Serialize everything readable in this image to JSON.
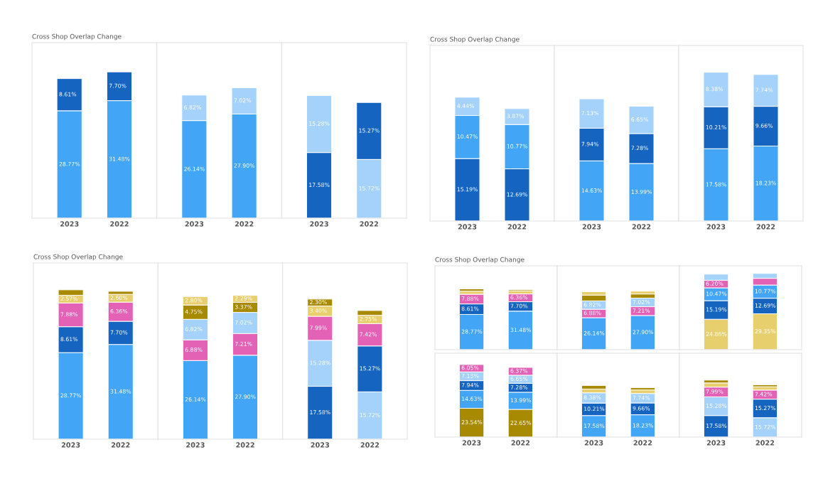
{
  "chart_data": [
    {
      "type": "bar",
      "title": "Cross Shop Overlap Change",
      "categories": [
        "2023",
        "2022"
      ],
      "stacked": true,
      "tick_labels": "x",
      "series": [
        {
          "color": "#42a5f5",
          "values": [
            28.77,
            31.48
          ],
          "value_labels": [
            "28.77%",
            "31.48%"
          ]
        },
        {
          "color": "#1565c0",
          "values": [
            8.61,
            7.7
          ],
          "value_labels": [
            "8.61%",
            "7.70%"
          ]
        }
      ]
    },
    {
      "type": "bar",
      "categories": [
        "2023",
        "2022"
      ],
      "stacked": true,
      "tick_labels": "x",
      "series": [
        {
          "color": "#42a5f5",
          "values": [
            26.14,
            27.9
          ],
          "value_labels": [
            "26.14%",
            "27.90%"
          ]
        },
        {
          "color": "#a5d2fb",
          "values": [
            6.82,
            7.02
          ],
          "value_labels": [
            "6.82%",
            "7.02%"
          ]
        }
      ]
    },
    {
      "type": "bar",
      "categories": [
        "2023",
        "2022"
      ],
      "stacked": true,
      "tick_labels": "x",
      "series": [
        {
          "color": "#1565c0",
          "values": [
            17.58,
            15.27
          ],
          "value_labels": [
            "17.58%",
            "15.27%"
          ]
        },
        {
          "color": "#a5d2fb",
          "values": [
            15.28,
            15.72
          ],
          "value_labels": [
            "15.28%",
            "15.72%"
          ]
        }
      ]
    },
    {
      "type": "bar",
      "title": "Cross Shop Overlap Change",
      "categories": [
        "2023",
        "2022"
      ],
      "stacked": true,
      "tick_labels": "x",
      "series": [
        {
          "color": "#1565c0",
          "values": [
            15.19,
            12.69
          ],
          "value_labels": [
            "15.19%",
            "12.69%"
          ]
        },
        {
          "color": "#42a5f5",
          "values": [
            10.47,
            10.77
          ],
          "value_labels": [
            "10.47%",
            "10.77%"
          ]
        },
        {
          "color": "#a5d2fb",
          "values": [
            4.44,
            3.87
          ],
          "value_labels": [
            "4.44%",
            "3.87%"
          ]
        }
      ]
    },
    {
      "type": "bar",
      "categories": [
        "2023",
        "2022"
      ],
      "stacked": true,
      "tick_labels": "x",
      "series": [
        {
          "color": "#42a5f5",
          "values": [
            14.63,
            13.99
          ],
          "value_labels": [
            "14.63%",
            "13.99%"
          ]
        },
        {
          "color": "#1565c0",
          "values": [
            7.94,
            7.28
          ],
          "value_labels": [
            "7.94%",
            "7.28%"
          ]
        },
        {
          "color": "#a5d2fb",
          "values": [
            7.13,
            6.65
          ],
          "value_labels": [
            "7.13%",
            "6.65%"
          ]
        }
      ]
    },
    {
      "type": "bar",
      "categories": [
        "2023",
        "2022"
      ],
      "stacked": true,
      "tick_labels": "x",
      "series": [
        {
          "color": "#42a5f5",
          "values": [
            17.58,
            18.23
          ],
          "value_labels": [
            "17.58%",
            "18.23%"
          ]
        },
        {
          "color": "#1565c0",
          "values": [
            10.21,
            9.66
          ],
          "value_labels": [
            "10.21%",
            "9.66%"
          ]
        },
        {
          "color": "#a5d2fb",
          "values": [
            8.38,
            7.74
          ],
          "value_labels": [
            "8.38%",
            "7.74%"
          ]
        }
      ]
    },
    {
      "type": "bar",
      "title": "Cross Shop Overlap Change",
      "categories": [
        "2023",
        "2022"
      ],
      "stacked": true,
      "tick_labels": "x",
      "series": [
        {
          "color": "#42a5f5",
          "values": [
            28.77,
            31.48
          ],
          "value_labels": [
            "28.77%",
            "31.48%"
          ]
        },
        {
          "color": "#1565c0",
          "values": [
            8.61,
            7.7
          ],
          "value_labels": [
            "8.61%",
            "7.70%"
          ]
        },
        {
          "color": "#e462b6",
          "values": [
            7.88,
            6.36
          ],
          "value_labels": [
            "7.88%",
            "6.36%"
          ]
        },
        {
          "color": "#e8cf6e",
          "values": [
            2.57,
            2.6
          ],
          "value_labels": [
            "2.57%",
            "2.60%"
          ]
        },
        {
          "color": "#a88a00",
          "values": [
            1.8,
            1.0
          ],
          "value_labels": [
            null,
            null
          ]
        }
      ]
    },
    {
      "type": "bar",
      "categories": [
        "2023",
        "2022"
      ],
      "stacked": true,
      "tick_labels": "x",
      "series": [
        {
          "color": "#42a5f5",
          "values": [
            26.14,
            27.9
          ],
          "value_labels": [
            "26.14%",
            "27.90%"
          ]
        },
        {
          "color": "#e462b6",
          "values": [
            6.88,
            7.21
          ],
          "value_labels": [
            "6.88%",
            "7.21%"
          ]
        },
        {
          "color": "#a5d2fb",
          "values": [
            6.82,
            7.02
          ],
          "value_labels": [
            "6.82%",
            "7.02%"
          ]
        },
        {
          "color": "#a88a00",
          "values": [
            4.75,
            3.37
          ],
          "value_labels": [
            "4.75%",
            "3.37%"
          ]
        },
        {
          "color": "#e8cf6e",
          "values": [
            2.8,
            2.29
          ],
          "value_labels": [
            "2.80%",
            "2.29%"
          ]
        }
      ]
    },
    {
      "type": "bar",
      "categories": [
        "2023",
        "2022"
      ],
      "stacked": true,
      "tick_labels": "x",
      "series": [
        {
          "color": "#1565c0",
          "values": [
            17.58,
            15.27
          ],
          "value_labels": [
            "17.58%",
            "15.27%"
          ]
        },
        {
          "color": "#a5d2fb",
          "values": [
            15.28,
            15.72
          ],
          "value_labels": [
            "15.28%",
            "15.72%"
          ]
        },
        {
          "color": "#e462b6",
          "values": [
            7.99,
            7.42
          ],
          "value_labels": [
            "7.99%",
            "7.42%"
          ]
        },
        {
          "color": "#e8cf6e",
          "values": [
            3.4,
            2.75
          ],
          "value_labels": [
            "3.40%",
            "2.75%"
          ]
        },
        {
          "color": "#a88a00",
          "values": [
            2.3,
            1.6
          ],
          "value_labels": [
            "2.30%",
            null
          ]
        }
      ]
    },
    {
      "type": "bar",
      "title": "Cross Shop Overlap Change",
      "categories": [
        "2023",
        "2022"
      ],
      "stacked": true,
      "tick_labels": false,
      "series": [
        {
          "color": "#42a5f5",
          "values": [
            28.77,
            31.48
          ],
          "value_labels": [
            "28.77%",
            "31.48%"
          ]
        },
        {
          "color": "#1565c0",
          "values": [
            8.61,
            7.7
          ],
          "value_labels": [
            "8.61%",
            "7.70%"
          ]
        },
        {
          "color": "#e462b6",
          "values": [
            7.88,
            6.36
          ],
          "value_labels": [
            "7.88%",
            "6.36%"
          ]
        },
        {
          "color": "#e8cf6e",
          "values": [
            2.57,
            2.6
          ],
          "value_labels": [
            null,
            null
          ]
        },
        {
          "color": "#a88a00",
          "values": [
            1.8,
            1.0
          ],
          "value_labels": [
            null,
            null
          ]
        }
      ]
    },
    {
      "type": "bar",
      "categories": [
        "2023",
        "2022"
      ],
      "stacked": true,
      "tick_labels": false,
      "series": [
        {
          "color": "#42a5f5",
          "values": [
            26.14,
            27.9
          ],
          "value_labels": [
            "26.14%",
            "27.90%"
          ]
        },
        {
          "color": "#e462b6",
          "values": [
            6.88,
            7.21
          ],
          "value_labels": [
            "6.88%",
            "7.21%"
          ]
        },
        {
          "color": "#a5d2fb",
          "values": [
            6.82,
            7.02
          ],
          "value_labels": [
            "6.82%",
            "7.02%"
          ]
        },
        {
          "color": "#a88a00",
          "values": [
            4.75,
            3.37
          ],
          "value_labels": [
            null,
            null
          ]
        },
        {
          "color": "#e8cf6e",
          "values": [
            2.8,
            2.29
          ],
          "value_labels": [
            null,
            null
          ]
        }
      ]
    },
    {
      "type": "bar",
      "categories": [
        "2023",
        "2022"
      ],
      "stacked": true,
      "tick_labels": false,
      "series": [
        {
          "color": "#e8cf6e",
          "values": [
            24.86,
            29.35
          ],
          "value_labels": [
            "24.86%",
            "29.35%"
          ]
        },
        {
          "color": "#1565c0",
          "values": [
            15.19,
            12.69
          ],
          "value_labels": [
            "15.19%",
            "12.69%"
          ]
        },
        {
          "color": "#42a5f5",
          "values": [
            10.47,
            10.77
          ],
          "value_labels": [
            "10.47%",
            "10.77%"
          ]
        },
        {
          "color": "#e462b6",
          "values": [
            6.2,
            5.5
          ],
          "value_labels": [
            "6.20%",
            null
          ]
        },
        {
          "color": "#a5d2fb",
          "values": [
            5.0,
            4.0
          ],
          "value_labels": [
            null,
            null
          ]
        }
      ]
    },
    {
      "type": "bar",
      "categories": [
        "2023",
        "2022"
      ],
      "stacked": true,
      "tick_labels": "x",
      "series": [
        {
          "color": "#a88a00",
          "values": [
            23.54,
            22.65
          ],
          "value_labels": [
            "23.54%",
            "22.65%"
          ]
        },
        {
          "color": "#42a5f5",
          "values": [
            14.63,
            13.99
          ],
          "value_labels": [
            "14.63%",
            "13.99%"
          ]
        },
        {
          "color": "#1565c0",
          "values": [
            7.94,
            7.28
          ],
          "value_labels": [
            "7.94%",
            "7.28%"
          ]
        },
        {
          "color": "#a5d2fb",
          "values": [
            7.13,
            6.65
          ],
          "value_labels": [
            "7.13%",
            "6.65%"
          ]
        },
        {
          "color": "#e462b6",
          "values": [
            6.05,
            6.37
          ],
          "value_labels": [
            "6.05%",
            "6.37%"
          ]
        }
      ]
    },
    {
      "type": "bar",
      "categories": [
        "2023",
        "2022"
      ],
      "stacked": true,
      "tick_labels": "x",
      "series": [
        {
          "color": "#42a5f5",
          "values": [
            17.58,
            18.23
          ],
          "value_labels": [
            "17.58%",
            "18.23%"
          ]
        },
        {
          "color": "#1565c0",
          "values": [
            10.21,
            9.66
          ],
          "value_labels": [
            "10.21%",
            "9.66%"
          ]
        },
        {
          "color": "#a5d2fb",
          "values": [
            8.38,
            7.74
          ],
          "value_labels": [
            "8.38%",
            "7.74%"
          ]
        },
        {
          "color": "#e8cf6e",
          "values": [
            3.1,
            2.9
          ],
          "value_labels": [
            null,
            null
          ]
        },
        {
          "color": "#a88a00",
          "values": [
            2.9,
            1.8
          ],
          "value_labels": [
            null,
            null
          ]
        }
      ]
    },
    {
      "type": "bar",
      "categories": [
        "2023",
        "2022"
      ],
      "stacked": true,
      "tick_labels": "x",
      "series": [
        {
          "color": "#1565c0",
          "values": [
            17.58,
            15.27
          ],
          "value_labels": [
            "17.58%",
            "15.27%"
          ]
        },
        {
          "color": "#a5d2fb",
          "values": [
            15.28,
            15.72
          ],
          "value_labels": [
            "15.28%",
            "15.72%"
          ]
        },
        {
          "color": "#e462b6",
          "values": [
            7.99,
            7.42
          ],
          "value_labels": [
            "7.99%",
            "7.42%"
          ]
        },
        {
          "color": "#e8cf6e",
          "values": [
            3.4,
            2.75
          ],
          "value_labels": [
            null,
            null
          ]
        },
        {
          "color": "#a88a00",
          "values": [
            2.3,
            1.6
          ],
          "value_labels": [
            null,
            null
          ]
        }
      ]
    }
  ]
}
